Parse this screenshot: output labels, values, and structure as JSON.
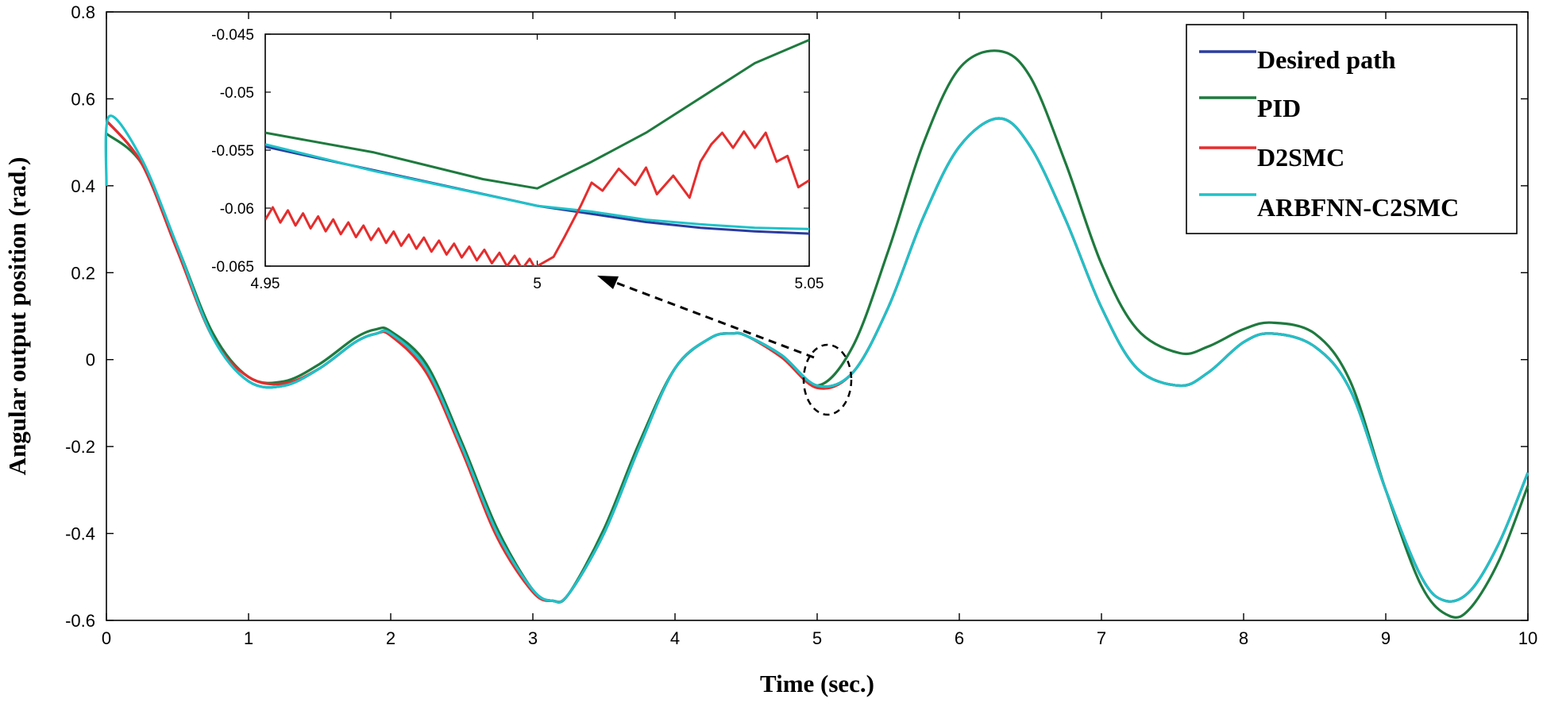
{
  "chart_data": {
    "type": "line",
    "title": "",
    "xlabel": "Time (sec.)",
    "ylabel": "Angular output position (rad.)",
    "xlim": [
      0,
      10
    ],
    "ylim": [
      -0.6,
      0.8
    ],
    "xticks": [
      "0",
      "1",
      "2",
      "3",
      "4",
      "5",
      "6",
      "7",
      "8",
      "9",
      "10"
    ],
    "yticks": [
      "-0.6",
      "-0.4",
      "-0.2",
      "0",
      "0.2",
      "0.4",
      "0.6",
      "0.8"
    ],
    "legend_position": "top-right",
    "series": [
      {
        "name": "Desired path",
        "color": "#2b3c9e",
        "x": [
          0,
          0.25,
          0.5,
          0.75,
          1.0,
          1.25,
          1.5,
          1.75,
          1.9,
          2.0,
          2.25,
          2.5,
          2.75,
          3.0,
          3.14,
          3.25,
          3.5,
          3.75,
          4.0,
          4.25,
          4.4,
          4.5,
          4.75,
          5.0,
          5.25,
          5.5,
          5.75,
          6.0,
          6.28,
          6.5,
          6.75,
          7.0,
          7.25,
          7.55,
          7.75,
          8.0,
          8.2,
          8.5,
          8.75,
          9.0,
          9.25,
          9.42,
          9.6,
          9.8,
          10.0
        ],
        "y": [
          0.55,
          0.45,
          0.25,
          0.05,
          -0.05,
          -0.06,
          -0.02,
          0.04,
          0.06,
          0.06,
          -0.02,
          -0.2,
          -0.4,
          -0.53,
          -0.555,
          -0.54,
          -0.4,
          -0.2,
          -0.02,
          0.05,
          0.06,
          0.055,
          0.01,
          -0.06,
          -0.03,
          0.12,
          0.33,
          0.49,
          0.555,
          0.49,
          0.32,
          0.12,
          -0.02,
          -0.06,
          -0.03,
          0.04,
          0.06,
          0.03,
          -0.07,
          -0.3,
          -0.5,
          -0.555,
          -0.53,
          -0.42,
          -0.26
        ]
      },
      {
        "name": "PID",
        "color": "#1e7a3e",
        "x": [
          0,
          0.25,
          0.5,
          0.75,
          1.0,
          1.25,
          1.5,
          1.75,
          1.9,
          2.0,
          2.25,
          2.5,
          2.75,
          3.0,
          3.14,
          3.25,
          3.5,
          3.75,
          4.0,
          4.25,
          4.4,
          4.5,
          4.75,
          5.0,
          5.25,
          5.5,
          5.75,
          6.0,
          6.28,
          6.5,
          6.75,
          7.0,
          7.25,
          7.55,
          7.75,
          8.0,
          8.2,
          8.5,
          8.75,
          9.0,
          9.25,
          9.45,
          9.6,
          9.8,
          10.0
        ],
        "y": [
          0.52,
          0.45,
          0.26,
          0.06,
          -0.04,
          -0.05,
          -0.01,
          0.05,
          0.07,
          0.065,
          -0.01,
          -0.19,
          -0.39,
          -0.53,
          -0.555,
          -0.54,
          -0.39,
          -0.19,
          -0.02,
          0.05,
          0.06,
          0.055,
          0.01,
          -0.06,
          0.03,
          0.25,
          0.5,
          0.67,
          0.71,
          0.65,
          0.45,
          0.22,
          0.07,
          0.015,
          0.03,
          0.07,
          0.085,
          0.06,
          -0.05,
          -0.3,
          -0.52,
          -0.59,
          -0.57,
          -0.46,
          -0.29
        ]
      },
      {
        "name": "D2SMC",
        "color": "#e52d2d",
        "x": [
          0,
          0.25,
          0.5,
          0.75,
          1.0,
          1.25,
          1.5,
          1.75,
          1.9,
          2.0,
          2.25,
          2.5,
          2.75,
          3.0,
          3.14,
          3.25,
          3.5,
          3.75,
          4.0,
          4.25,
          4.4,
          4.5,
          4.75,
          5.0,
          5.25,
          5.5,
          5.75,
          6.0,
          6.28,
          6.5,
          6.75,
          7.0,
          7.25,
          7.55,
          7.75,
          8.0,
          8.2,
          8.5,
          8.75,
          9.0,
          9.25,
          9.42,
          9.6,
          9.8,
          10.0
        ],
        "y": [
          0.55,
          0.45,
          0.25,
          0.05,
          -0.04,
          -0.055,
          -0.02,
          0.04,
          0.06,
          0.055,
          -0.03,
          -0.21,
          -0.41,
          -0.535,
          -0.555,
          -0.54,
          -0.4,
          -0.2,
          -0.02,
          0.05,
          0.06,
          0.055,
          0.005,
          -0.065,
          -0.03,
          0.12,
          0.33,
          0.49,
          0.555,
          0.49,
          0.32,
          0.12,
          -0.02,
          -0.06,
          -0.03,
          0.04,
          0.06,
          0.03,
          -0.07,
          -0.3,
          -0.5,
          -0.555,
          -0.53,
          -0.42,
          -0.26
        ]
      },
      {
        "name": "ARBFNN-C2SMC",
        "color": "#1ec2c8",
        "x": [
          0,
          0.02,
          0.25,
          0.5,
          0.75,
          1.0,
          1.25,
          1.5,
          1.75,
          1.9,
          2.0,
          2.25,
          2.5,
          2.75,
          3.0,
          3.14,
          3.25,
          3.5,
          3.75,
          4.0,
          4.25,
          4.4,
          4.5,
          4.75,
          5.0,
          5.25,
          5.5,
          5.75,
          6.0,
          6.28,
          6.5,
          6.75,
          7.0,
          7.25,
          7.55,
          7.75,
          8.0,
          8.2,
          8.5,
          8.75,
          9.0,
          9.25,
          9.42,
          9.6,
          9.8,
          10.0
        ],
        "y": [
          0.4,
          0.56,
          0.46,
          0.26,
          0.05,
          -0.05,
          -0.06,
          -0.02,
          0.04,
          0.06,
          0.06,
          -0.02,
          -0.2,
          -0.4,
          -0.53,
          -0.555,
          -0.54,
          -0.4,
          -0.2,
          -0.02,
          0.05,
          0.06,
          0.055,
          0.01,
          -0.06,
          -0.03,
          0.12,
          0.33,
          0.49,
          0.555,
          0.49,
          0.32,
          0.12,
          -0.02,
          -0.06,
          -0.03,
          0.04,
          0.06,
          0.03,
          -0.07,
          -0.3,
          -0.5,
          -0.555,
          -0.53,
          -0.42,
          -0.26
        ]
      }
    ],
    "inset": {
      "xlim": [
        4.95,
        5.05
      ],
      "ylim": [
        -0.065,
        -0.045
      ],
      "xticks": [
        "4.95",
        "5",
        "5.05"
      ],
      "yticks": [
        "-0.045",
        "-0.05",
        "-0.055",
        "-0.06",
        "-0.065"
      ],
      "series": [
        {
          "name": "Desired path",
          "x": [
            4.95,
            5.0,
            5.01,
            5.02,
            5.03,
            5.04,
            5.05
          ],
          "y": [
            -0.0547,
            -0.0598,
            -0.0605,
            -0.0612,
            -0.0617,
            -0.062,
            -0.0622
          ]
        },
        {
          "name": "PID",
          "x": [
            4.95,
            4.97,
            4.99,
            5.0,
            5.01,
            5.02,
            5.03,
            5.04,
            5.05
          ],
          "y": [
            -0.0535,
            -0.0552,
            -0.0575,
            -0.0583,
            -0.056,
            -0.0535,
            -0.0505,
            -0.0475,
            -0.0455
          ]
        },
        {
          "name": "D2SMC",
          "x_start": 4.95,
          "x_end": 5.0,
          "y_oscillation": [
            -0.061,
            -0.0598,
            -0.0655,
            -0.0645
          ],
          "burst_x": [
            5.0,
            5.003,
            5.005,
            5.008,
            5.01,
            5.012,
            5.015,
            5.018,
            5.02,
            5.022,
            5.025,
            5.028,
            5.03,
            5.032,
            5.034,
            5.036,
            5.038,
            5.04,
            5.042,
            5.044,
            5.046,
            5.048,
            5.05
          ],
          "burst_y": [
            -0.065,
            -0.0642,
            -0.0625,
            -0.0598,
            -0.0578,
            -0.0585,
            -0.0566,
            -0.058,
            -0.0565,
            -0.0588,
            -0.0572,
            -0.0591,
            -0.056,
            -0.0545,
            -0.0535,
            -0.0548,
            -0.0534,
            -0.0548,
            -0.0535,
            -0.056,
            -0.0555,
            -0.0582,
            -0.0576
          ]
        },
        {
          "name": "ARBFNN-C2SMC",
          "x": [
            4.95,
            4.97,
            4.99,
            5.0,
            5.01,
            5.02,
            5.03,
            5.04,
            5.05
          ],
          "y": [
            -0.0545,
            -0.0568,
            -0.0588,
            -0.0598,
            -0.0603,
            -0.061,
            -0.0614,
            -0.0617,
            -0.0618
          ]
        }
      ]
    }
  }
}
